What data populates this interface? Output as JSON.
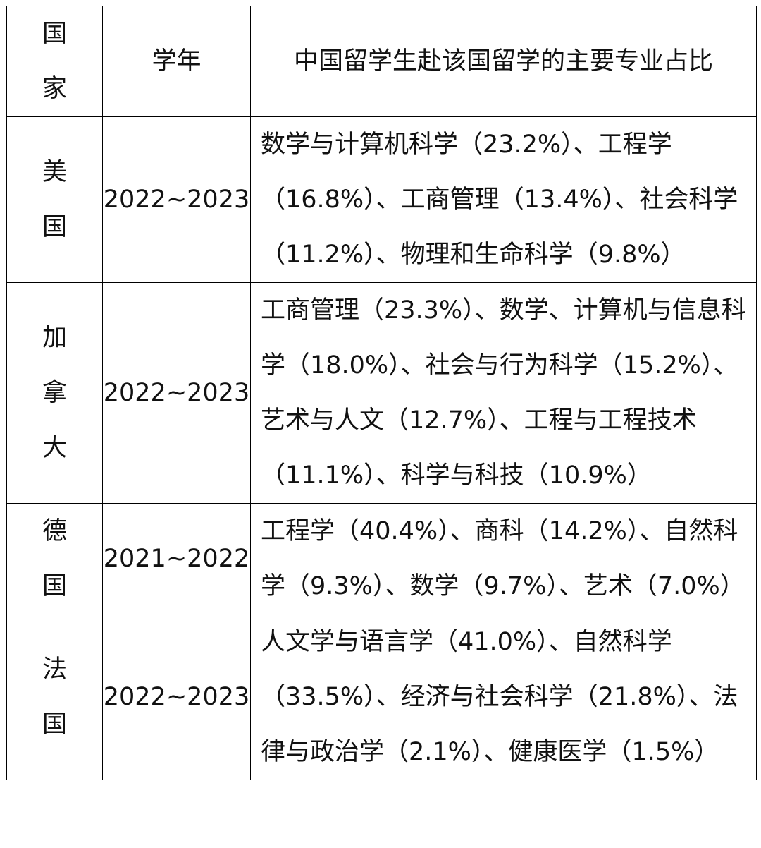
{
  "table": {
    "header": [
      "国家",
      "学年",
      "中国留学生赴该国留学的主要专业占比"
    ],
    "rows": [
      [
        "美国",
        "2022~2023",
        "数学与计算机科学（23.2%）、工程学（16.8%）、工商管理（13.4%）、社会科学（11.2%）、物理和生命科学（9.8%）"
      ],
      [
        "加拿大",
        "2022~2023",
        "工商管理（23.3%）、数学、计算机与信息科学（18.0%）、社会与行为科学（15.2%）、艺术与人文（12.7%）、工程与工程技术（11.1%）、科学与科技（10.9%）"
      ],
      [
        "德国",
        "2021~2022",
        "工程学（40.4%）、商科（14.2%）、自然科学（9.3%）、数学（9.7%）、艺术（7.0%）"
      ],
      [
        "法国",
        "2022~2023",
        "人文学与语言学（41.0%）、自然科学（33.5%）、经济与社会科学（21.8%）、法律与政治学（2.1%）、健康医学（1.5%）"
      ]
    ]
  }
}
